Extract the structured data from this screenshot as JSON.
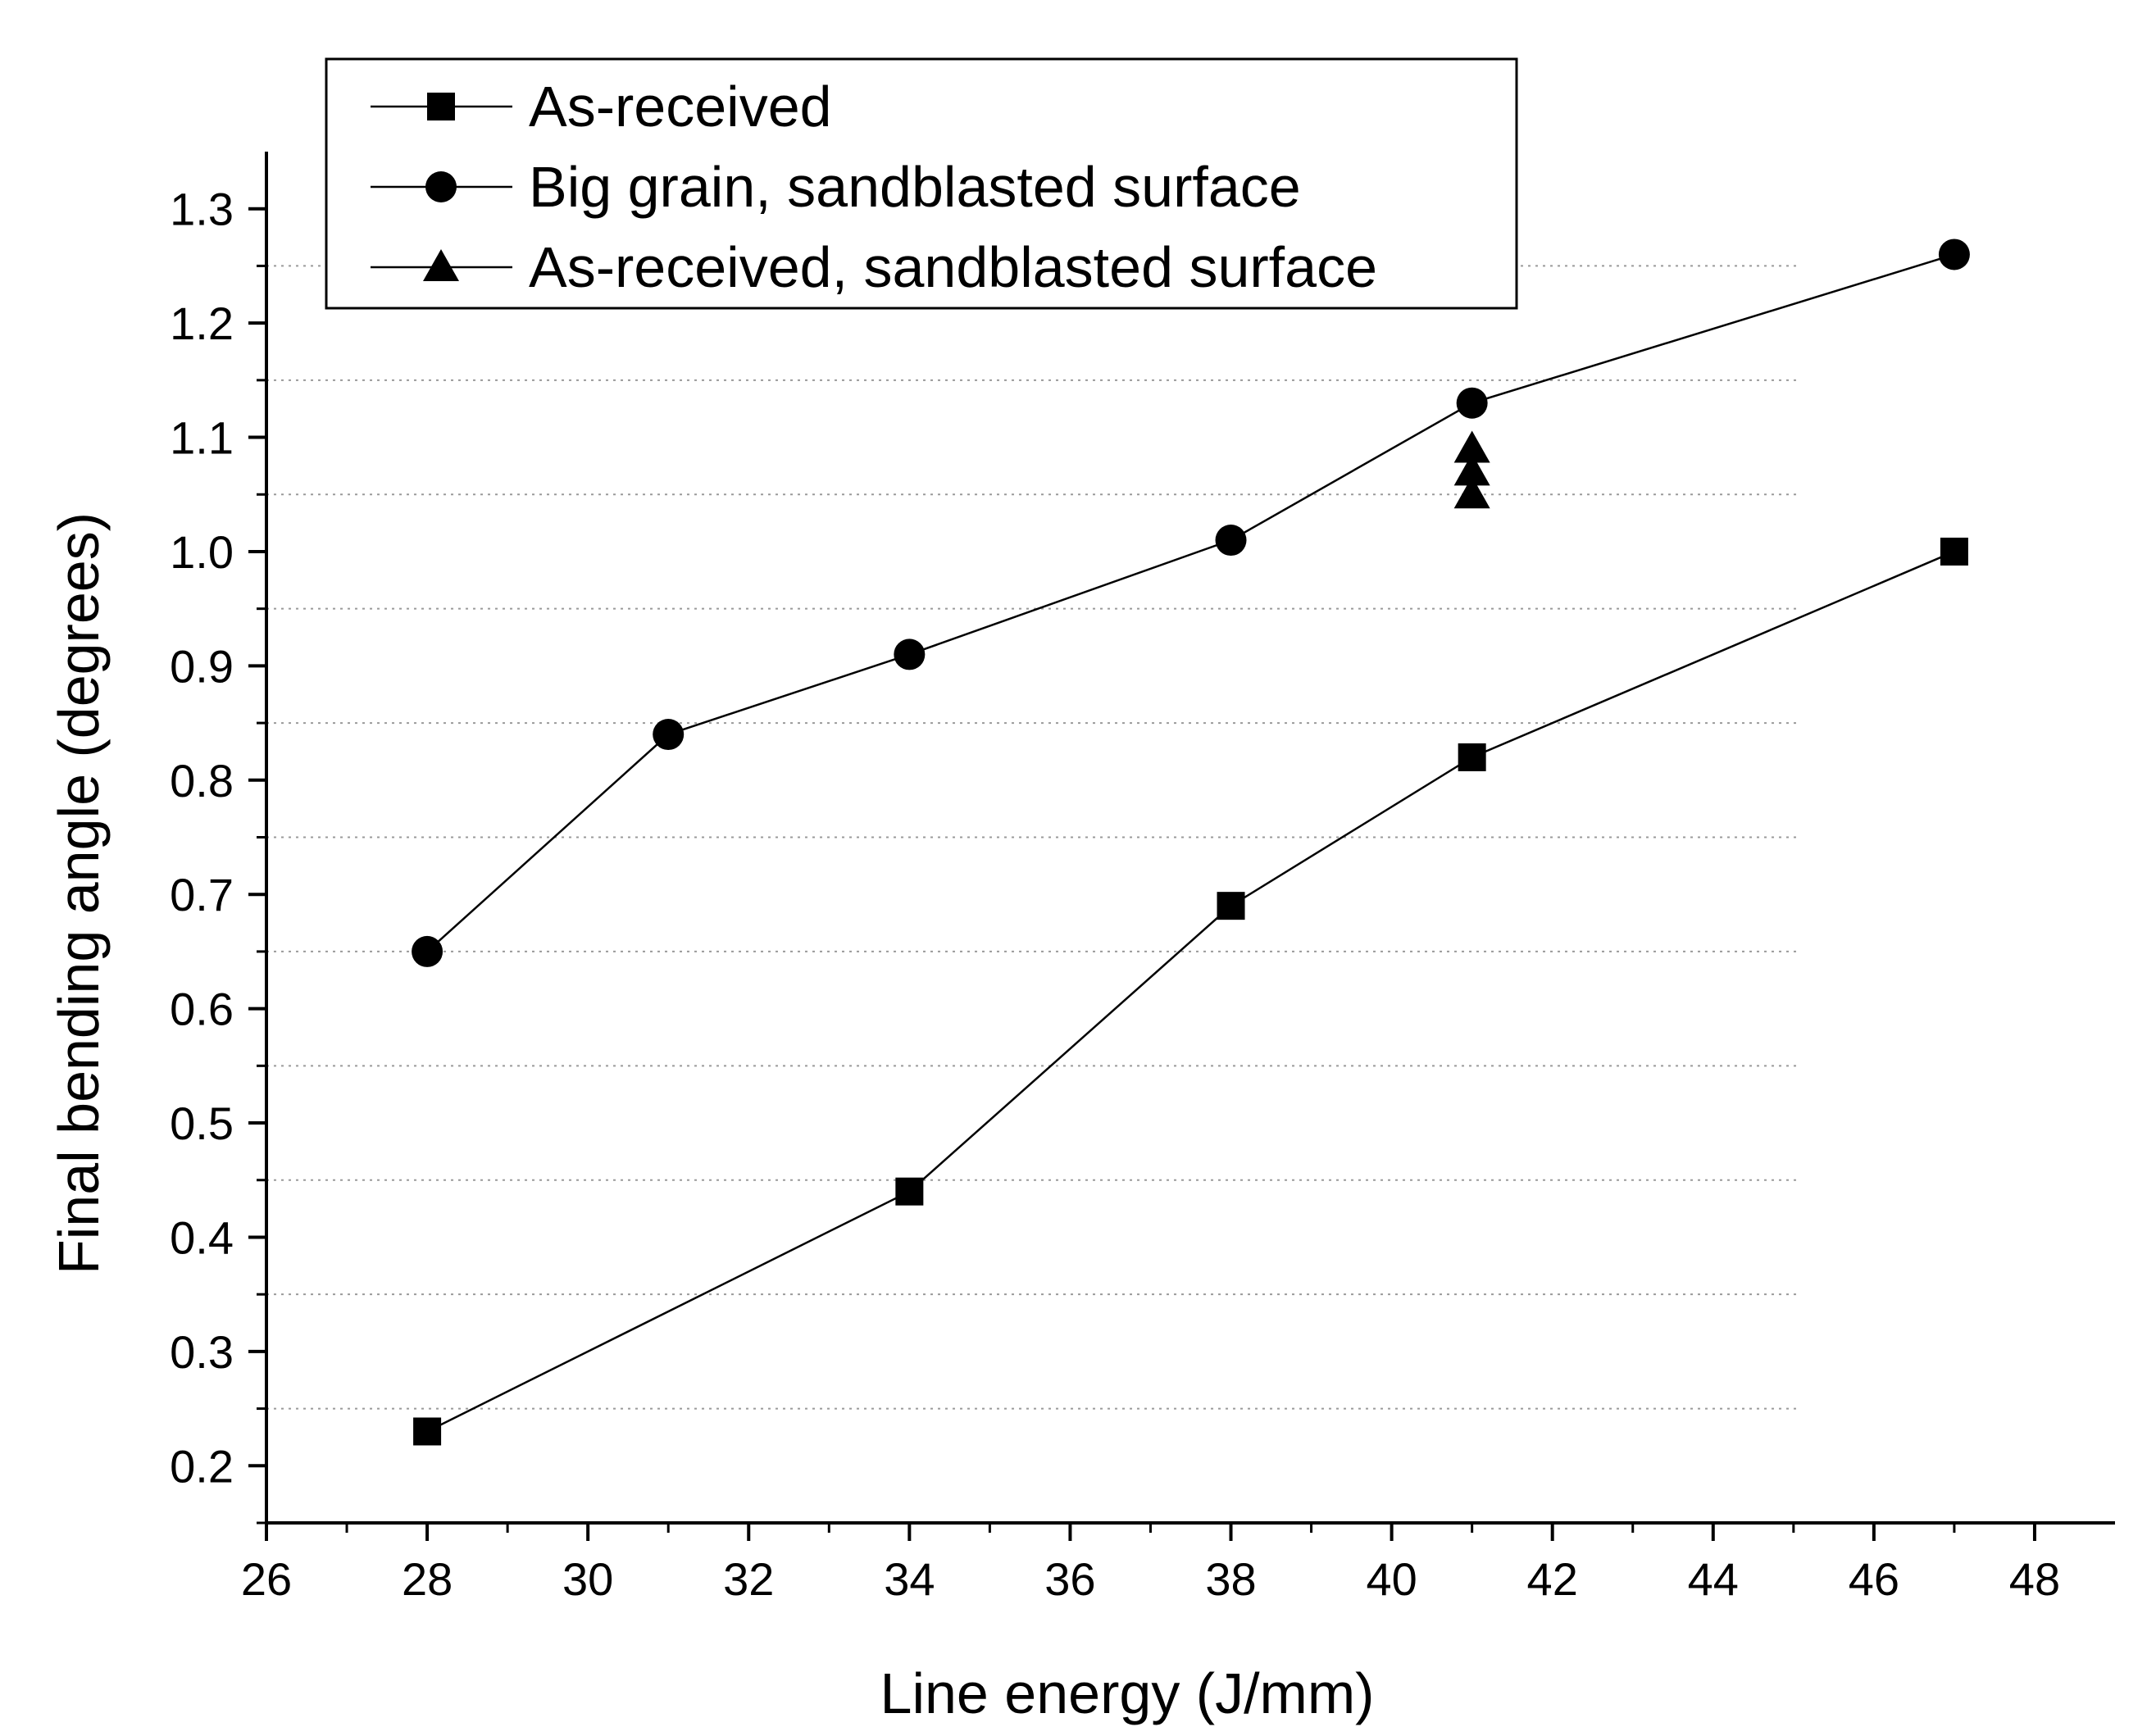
{
  "chart_data": {
    "type": "line",
    "title": "",
    "xlabel": "Line energy (J/mm)",
    "ylabel": "Final bending angle (degrees)",
    "xlim": [
      26,
      49
    ],
    "ylim": [
      0.15,
      1.35
    ],
    "x_ticks": [
      26,
      28,
      30,
      32,
      34,
      36,
      38,
      40,
      42,
      44,
      46,
      48
    ],
    "x_tick_labels": [
      "26",
      "28",
      "30",
      "32",
      "34",
      "36",
      "38",
      "40",
      "42",
      "44",
      "46",
      "48"
    ],
    "y_ticks": [
      0.2,
      0.3,
      0.4,
      0.5,
      0.6,
      0.7,
      0.8,
      0.9,
      1.0,
      1.1,
      1.2,
      1.3
    ],
    "y_tick_labels": [
      "0.2",
      "0.3",
      "0.4",
      "0.5",
      "0.6",
      "0.7",
      "0.8",
      "0.9",
      "1.0",
      "1.1",
      "1.2",
      "1.3"
    ],
    "grid": "horizontal dotted lines at y = 0.25, 0.35, 0.45, 0.55, 0.65, 0.75, 0.85, 0.95, 1.05, 1.15, 1.25",
    "grid_y": [
      0.25,
      0.35,
      0.45,
      0.55,
      0.65,
      0.75,
      0.85,
      0.95,
      1.05,
      1.15,
      1.25
    ],
    "legend_position": "top-left",
    "series": [
      {
        "name": "As-received",
        "marker": "square",
        "connected": true,
        "x": [
          28,
          34,
          38,
          41,
          47
        ],
        "y": [
          0.23,
          0.44,
          0.69,
          0.82,
          1.0
        ]
      },
      {
        "name": "Big grain, sandblasted surface",
        "marker": "circle",
        "connected": true,
        "x": [
          28,
          31,
          34,
          38,
          41,
          47
        ],
        "y": [
          0.65,
          0.84,
          0.91,
          1.01,
          1.13,
          1.26
        ]
      },
      {
        "name": "As-received, sandblasted surface",
        "marker": "triangle",
        "connected": false,
        "x": [
          41,
          41,
          41
        ],
        "y": [
          1.05,
          1.07,
          1.09
        ]
      }
    ],
    "colors": {
      "ink": "#000000",
      "grid": "#9a9a9a",
      "background": "#ffffff"
    }
  }
}
